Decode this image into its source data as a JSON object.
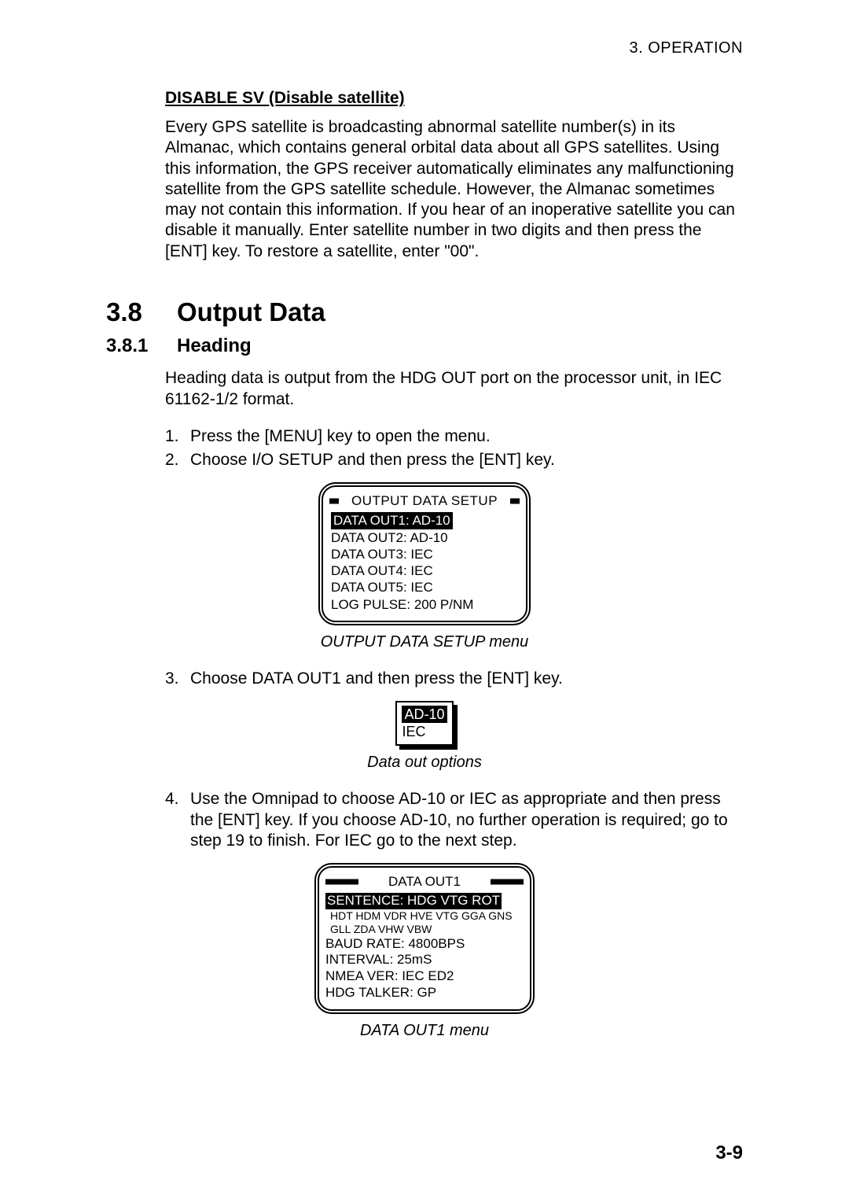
{
  "header": {
    "chapter_label": "3. OPERATION"
  },
  "disable_sv": {
    "title": "DISABLE SV (Disable satellite)",
    "para": "Every GPS satellite is broadcasting abnormal satellite number(s) in its Almanac, which contains general orbital data about all GPS satellites. Using this information, the GPS receiver automatically eliminates any malfunctioning satellite from the GPS satellite schedule. However, the Almanac sometimes may not contain this information. If you hear of an inoperative satellite you can disable it manually. Enter satellite number in two digits and then press the [ENT] key. To restore a satellite, enter \"00\"."
  },
  "section": {
    "num": "3.8",
    "title": "Output Data"
  },
  "subsection": {
    "num": "3.8.1",
    "title": "Heading"
  },
  "heading_para": "Heading data is output from the HDG OUT port on the processor unit, in IEC 61162-1/2 format.",
  "steps": {
    "s1": {
      "n": "1.",
      "t": "Press the [MENU] key to open the menu."
    },
    "s2": {
      "n": "2.",
      "t": "Choose I/O SETUP and then press the [ENT] key."
    },
    "s3": {
      "n": "3.",
      "t": "Choose DATA OUT1 and then press the [ENT] key."
    },
    "s4": {
      "n": "4.",
      "t": "Use the Omnipad to choose AD-10 or IEC as appropriate and then press the [ENT] key. If you choose AD-10, no further operation is required; go to step 19 to finish. For IEC go to the next step."
    }
  },
  "fig1": {
    "title": "OUTPUT DATA SETUP",
    "lines": {
      "l1": "DATA OUT1: AD-10",
      "l2": "DATA OUT2: AD-10",
      "l3": "DATA OUT3: IEC",
      "l4": "DATA OUT4: IEC",
      "l5": "DATA OUT5: IEC",
      "l6": "LOG PULSE: 200 P/NM"
    },
    "caption": "OUTPUT DATA SETUP menu"
  },
  "fig2": {
    "opt1": "AD-10",
    "opt2": "IEC",
    "caption": "Data out options"
  },
  "fig3": {
    "title": "DATA OUT1",
    "line1": "SENTENCE: HDG VTG ROT",
    "sub1": "HDT HDM VDR HVE VTG GGA GNS",
    "sub2": "GLL ZDA VHW VBW",
    "line2": "BAUD RATE: 4800BPS",
    "line3": "INTERVAL: 25mS",
    "line4": "NMEA VER: IEC ED2",
    "line5": "HDG TALKER: GP",
    "caption": "DATA OUT1 menu"
  },
  "page_num": "3-9",
  "colors": {
    "text": "#000000",
    "background": "#ffffff",
    "highlight_bg": "#000000",
    "highlight_text": "#ffffff"
  }
}
